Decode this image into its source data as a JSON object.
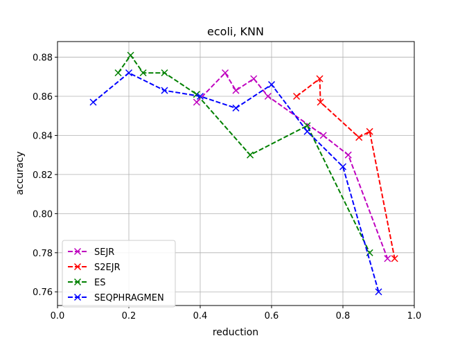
{
  "chart_data": {
    "type": "line",
    "title": "ecoli, KNN",
    "xlabel": "reduction",
    "ylabel": "accuracy",
    "xlim": [
      0.0,
      1.0
    ],
    "ylim": [
      0.753,
      0.888
    ],
    "xticks": [
      0.0,
      0.2,
      0.4,
      0.6,
      0.8,
      1.0
    ],
    "xtick_labels": [
      "0.0",
      "0.2",
      "0.4",
      "0.6",
      "0.8",
      "1.0"
    ],
    "yticks": [
      0.76,
      0.78,
      0.8,
      0.82,
      0.84,
      0.86,
      0.88
    ],
    "ytick_labels": [
      "0.76",
      "0.78",
      "0.80",
      "0.82",
      "0.84",
      "0.86",
      "0.88"
    ],
    "grid": true,
    "legend_position": "lower-left",
    "series": [
      {
        "name": "SEJR",
        "color": "#bf00bf",
        "marker": "x",
        "linestyle": "dashed",
        "x": [
          0.39,
          0.47,
          0.5,
          0.55,
          0.59,
          0.745,
          0.815,
          0.925
        ],
        "y": [
          0.857,
          0.872,
          0.863,
          0.869,
          0.86,
          0.84,
          0.83,
          0.777
        ]
      },
      {
        "name": "S2EJR",
        "color": "#ff0000",
        "marker": "x",
        "linestyle": "dashed",
        "x": [
          0.67,
          0.735,
          0.737,
          0.845,
          0.875,
          0.945
        ],
        "y": [
          0.86,
          0.869,
          0.857,
          0.839,
          0.842,
          0.777
        ]
      },
      {
        "name": "ES",
        "color": "#008000",
        "marker": "x",
        "linestyle": "dashed",
        "x": [
          0.17,
          0.205,
          0.24,
          0.3,
          0.39,
          0.54,
          0.7,
          0.875
        ],
        "y": [
          0.872,
          0.881,
          0.872,
          0.872,
          0.861,
          0.83,
          0.845,
          0.78
        ]
      },
      {
        "name": "SEQPHRAGMEN",
        "color": "#0000ff",
        "marker": "x",
        "linestyle": "dashed",
        "x": [
          0.1,
          0.2,
          0.3,
          0.4,
          0.5,
          0.6,
          0.7,
          0.8,
          0.9
        ],
        "y": [
          0.857,
          0.872,
          0.863,
          0.86,
          0.854,
          0.866,
          0.842,
          0.824,
          0.76
        ]
      }
    ]
  }
}
